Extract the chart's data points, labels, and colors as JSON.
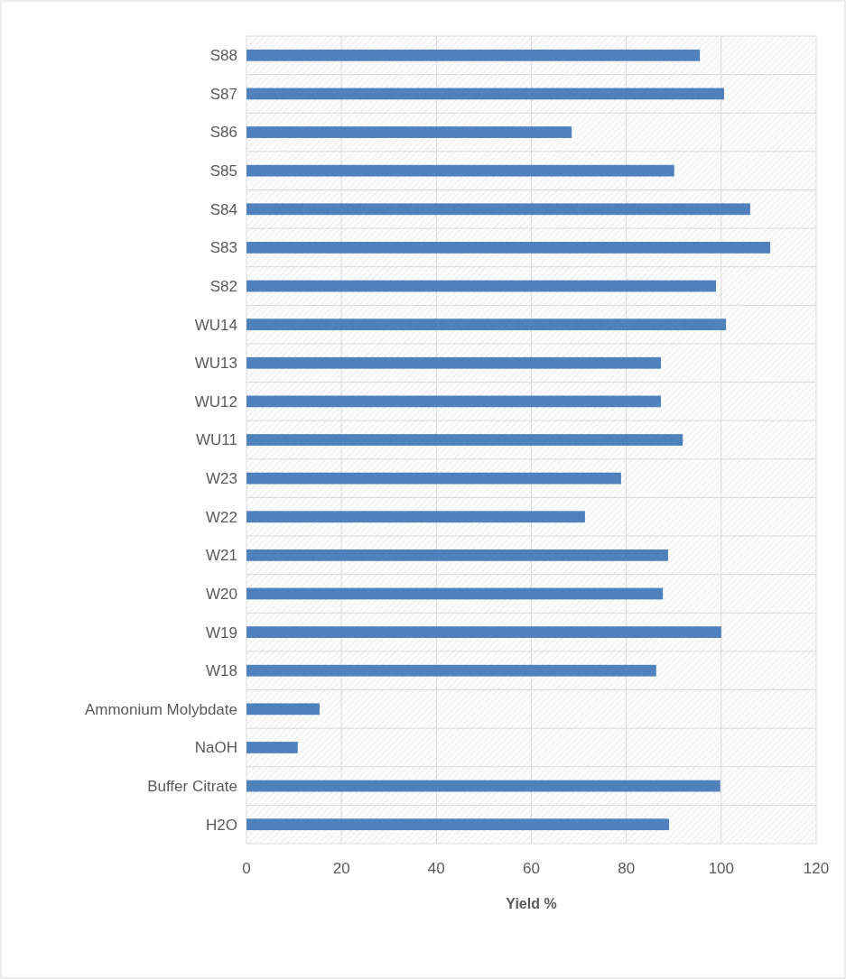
{
  "chart_data": {
    "type": "bar",
    "orientation": "horizontal",
    "xlabel": "Yield %",
    "categories": [
      "S88",
      "S87",
      "S86",
      "S85",
      "S84",
      "S83",
      "S82",
      "WU14",
      "WU13",
      "WU12",
      "WU11",
      "W23",
      "W22",
      "W21",
      "W20",
      "W19",
      "W18",
      "Ammonium Molybdate",
      "NaOH",
      "Buffer Citrate",
      "H2O"
    ],
    "values": [
      95.5,
      100.6,
      68.5,
      90.1,
      106.1,
      110.3,
      98.9,
      101.0,
      87.3,
      87.3,
      91.9,
      78.9,
      71.3,
      88.8,
      87.7,
      100.0,
      86.3,
      15.4,
      10.8,
      99.8,
      89.0
    ],
    "color": "#4f81bd",
    "xlim": [
      0,
      120
    ],
    "xticks": [
      0,
      20,
      40,
      60,
      80,
      100,
      120
    ],
    "grid": true
  }
}
